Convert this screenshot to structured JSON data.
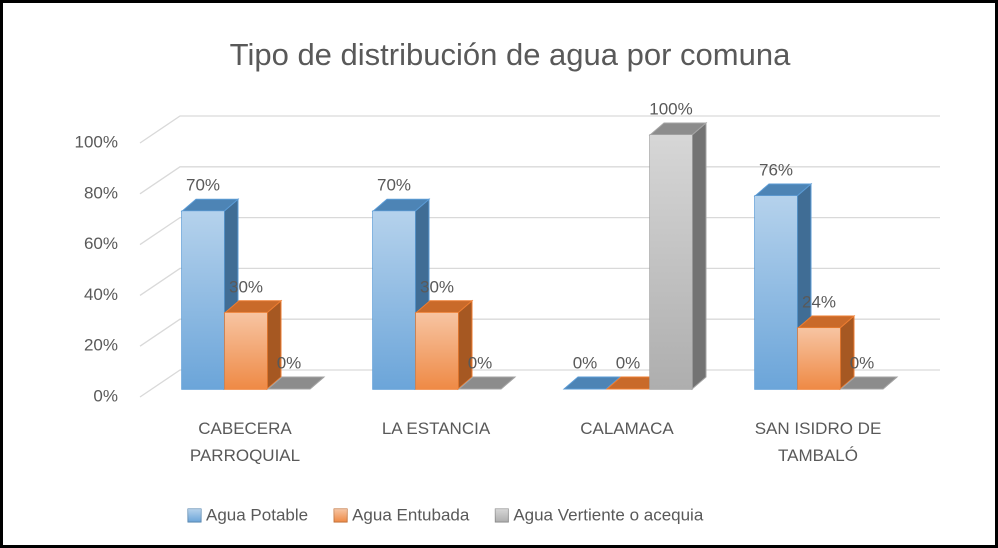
{
  "chart_data": {
    "type": "bar3d",
    "title": "Tipo de distribución de agua por comuna",
    "categories": [
      "CABECERA PARROQUIAL",
      "LA ESTANCIA",
      "CALAMACA",
      "SAN ISIDRO DE TAMBALÓ"
    ],
    "series": [
      {
        "name": "Agua Potable",
        "color": "#5b9bd5",
        "values": [
          70,
          70,
          0,
          76
        ],
        "value_labels": [
          "70%",
          "70%",
          "0%",
          "76%"
        ]
      },
      {
        "name": "Agua Entubada",
        "color": "#ed7d31",
        "values": [
          30,
          30,
          0,
          24
        ],
        "value_labels": [
          "30%",
          "30%",
          "0%",
          "24%"
        ]
      },
      {
        "name": "Agua Vertiente o acequia",
        "color": "#a5a5a5",
        "values": [
          0,
          0,
          100,
          0
        ],
        "value_labels": [
          "0%",
          "0%",
          "100%",
          "0%"
        ]
      }
    ],
    "ylim": [
      0,
      100
    ],
    "yticks": [
      {
        "value": 0,
        "label": "0%"
      },
      {
        "value": 20,
        "label": "20%"
      },
      {
        "value": 40,
        "label": "40%"
      },
      {
        "value": 60,
        "label": "60%"
      },
      {
        "value": 80,
        "label": "80%"
      },
      {
        "value": 100,
        "label": "100%"
      }
    ],
    "grid": true,
    "legend": "bottom"
  }
}
